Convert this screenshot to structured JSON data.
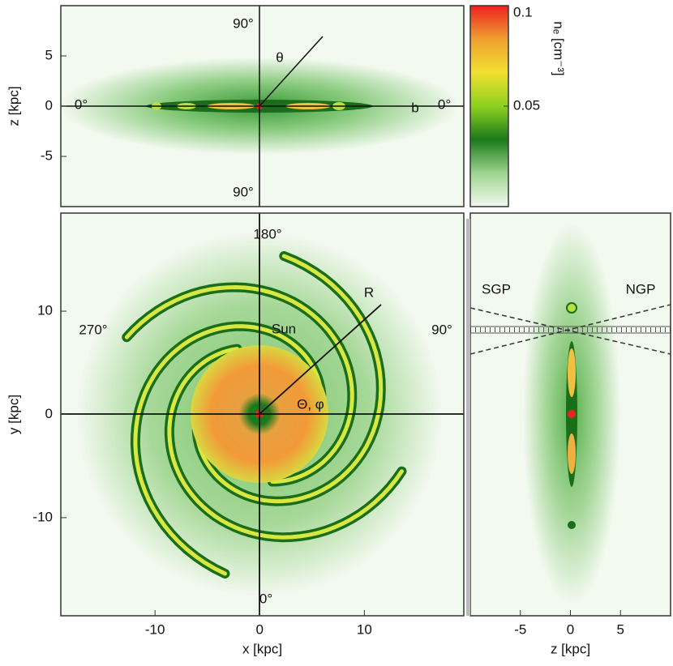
{
  "chart_data": [
    {
      "type": "heatmap",
      "ylabel": "z [kpc]",
      "xlim": [
        -19,
        19.5
      ],
      "ylim": [
        -10,
        10
      ],
      "yticks": [
        -5,
        0,
        5
      ],
      "annotations": [
        "90°",
        "θ",
        "0°",
        "b",
        "0°",
        "90°"
      ]
    },
    {
      "type": "heatmap",
      "xlabel": "x [kpc]",
      "ylabel": "y [kpc]",
      "xlim": [
        -19,
        19.5
      ],
      "ylim": [
        -19.5,
        19.5
      ],
      "xticks": [
        -10,
        0,
        10
      ],
      "yticks": [
        -10,
        0,
        10
      ],
      "annotations": [
        "180°",
        "270°",
        "90°",
        "R",
        "Sun",
        "Θ, φ",
        "0°"
      ]
    },
    {
      "type": "heatmap",
      "xlabel": "z [kpc]",
      "xlim": [
        -10,
        10
      ],
      "ylim": [
        -19.5,
        19.5
      ],
      "xticks": [
        -5,
        0,
        5
      ],
      "annotations": [
        "SGP",
        "NGP"
      ]
    },
    {
      "type": "colorbar",
      "label": "nₑ [cm⁻³]",
      "lim": [
        0,
        0.1
      ],
      "ticks": [
        0.1,
        0.05
      ],
      "colors": [
        "#f2f9ef",
        "#9fd48f",
        "#1a7a1a",
        "#8fd020",
        "#f0e030",
        "#f0a030",
        "#f02020"
      ]
    }
  ]
}
